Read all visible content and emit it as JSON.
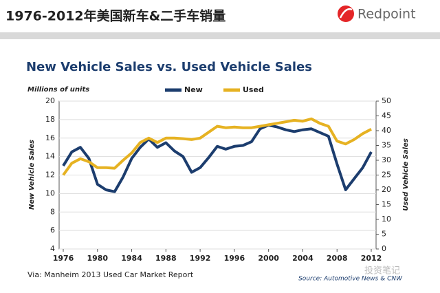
{
  "slide": {
    "title": "1976-2012年美国新车&二手车销量",
    "logo": "Redpoint",
    "note": "Via: Manheim 2013 Used Car Market Report",
    "watermark": "投资笔记"
  },
  "chart_data": {
    "type": "line",
    "title": "New Vehicle Sales vs. Used Vehicle Sales",
    "units_label": "Millions of units",
    "y_label": "New Vehicle Sales",
    "y2_label": "Used Vehicle Sales",
    "source": "Source: Automotive News & CNW",
    "x": [
      1976,
      1977,
      1978,
      1979,
      1980,
      1981,
      1982,
      1983,
      1984,
      1985,
      1986,
      1987,
      1988,
      1989,
      1990,
      1991,
      1992,
      1993,
      1994,
      1995,
      1996,
      1997,
      1998,
      1999,
      2000,
      2001,
      2002,
      2003,
      2004,
      2005,
      2006,
      2007,
      2008,
      2009,
      2010,
      2011,
      2012
    ],
    "series": [
      {
        "name": "New",
        "color": "#1c3d6e",
        "axis": "y",
        "values": [
          13.0,
          14.5,
          15.0,
          13.8,
          11.0,
          10.4,
          10.2,
          11.8,
          13.8,
          15.0,
          15.9,
          15.0,
          15.5,
          14.6,
          14.0,
          12.3,
          12.8,
          13.9,
          15.1,
          14.8,
          15.1,
          15.2,
          15.6,
          17.0,
          17.4,
          17.2,
          16.9,
          16.7,
          16.9,
          17.0,
          16.6,
          16.2,
          13.2,
          10.4,
          11.6,
          12.8,
          14.5
        ]
      },
      {
        "name": "Used",
        "color": "#e6b222",
        "axis": "y2",
        "values": [
          25,
          29,
          30.5,
          29.5,
          27.5,
          27.5,
          27.3,
          30,
          32.5,
          36,
          37.5,
          36,
          37.5,
          37.5,
          37.3,
          37,
          37.5,
          39.5,
          41.5,
          41,
          41.2,
          41,
          41,
          41.5,
          42,
          42.5,
          43,
          43.5,
          43.2,
          44,
          42.5,
          41.5,
          36.5,
          35.5,
          37,
          39,
          40.5
        ]
      }
    ],
    "xlim": [
      1976,
      2012
    ],
    "xticks": [
      1976,
      1980,
      1984,
      1988,
      1992,
      1996,
      2000,
      2004,
      2008,
      2012
    ],
    "ylim": [
      4,
      20
    ],
    "yticks": [
      4,
      6,
      8,
      10,
      12,
      14,
      16,
      18,
      20
    ],
    "y2lim": [
      0,
      50
    ],
    "y2ticks": [
      0,
      5,
      10,
      15,
      20,
      25,
      30,
      35,
      40,
      45,
      50
    ],
    "grid": true
  }
}
